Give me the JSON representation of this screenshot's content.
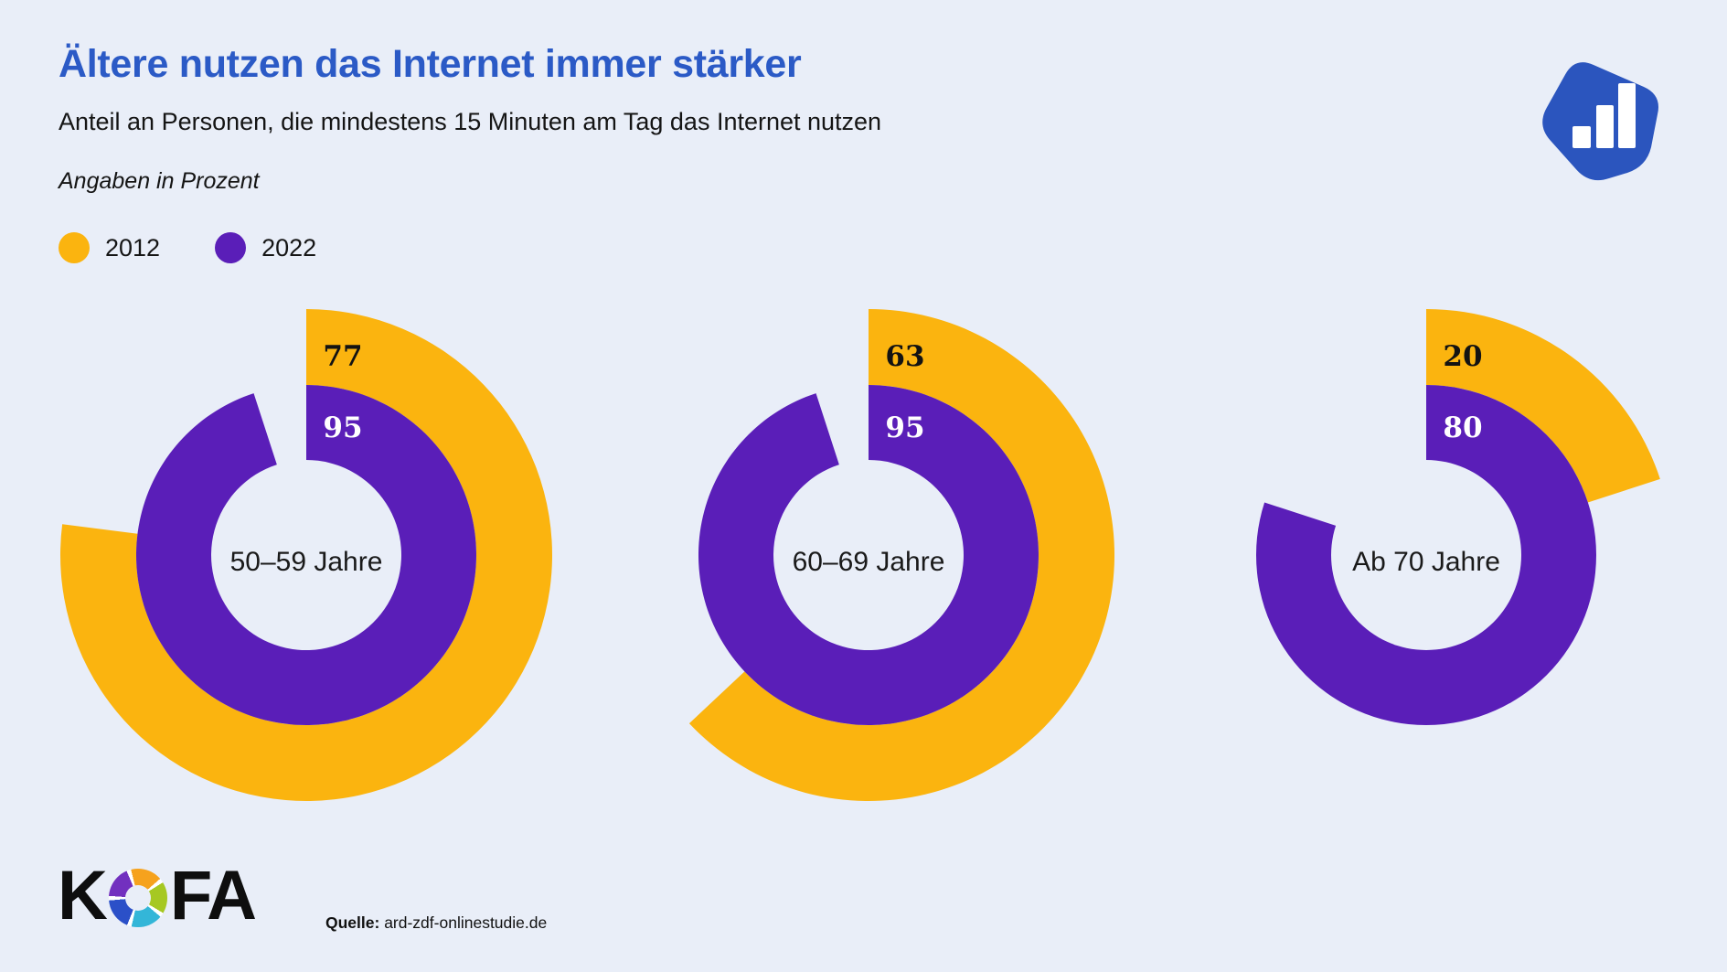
{
  "header": {
    "title": "Ältere nutzen das Internet immer stärker",
    "subtitle": "Anteil an Personen, die mindestens 15 Minuten am Tag das Internet nutzen",
    "unit_note": "Angaben in Prozent"
  },
  "colors": {
    "background": "#E9EEF8",
    "title_blue": "#2B5AC6",
    "series_2012_orange": "#FBB40F",
    "series_2022_purple": "#5A1EB8",
    "corner_logo_blue": "#2B55BE"
  },
  "legend": [
    {
      "label": "2012",
      "color": "#FBB40F"
    },
    {
      "label": "2022",
      "color": "#5A1EB8"
    }
  ],
  "chart_data": {
    "type": "donut-multiple",
    "title": "Ältere nutzen das Internet immer stärker",
    "subtitle": "Anteil an Personen, die mindestens 15 Minuten am Tag das Internet nutzen",
    "unit": "Prozent",
    "categories": [
      "50–59 Jahre",
      "60–69 Jahre",
      "Ab 70 Jahre"
    ],
    "series": [
      {
        "name": "2012",
        "ring": "outer",
        "color": "#FBB40F",
        "label_color": "#131313",
        "values": [
          77,
          63,
          20
        ]
      },
      {
        "name": "2022",
        "ring": "inner",
        "color": "#5A1EB8",
        "label_color": "#ffffff",
        "values": [
          95,
          95,
          80
        ]
      }
    ],
    "value_range": [
      0,
      100
    ],
    "start_angle_deg": 0,
    "direction": "clockwise",
    "legend_position": "top-left",
    "grid": false
  },
  "footer": {
    "logo_k": "K",
    "logo_fa": "FA",
    "source_label": "Quelle:",
    "source_value": " ard-zdf-onlinestudie.de"
  },
  "branding": {
    "corner_logo": "bar-chart-pentagon-icon"
  }
}
